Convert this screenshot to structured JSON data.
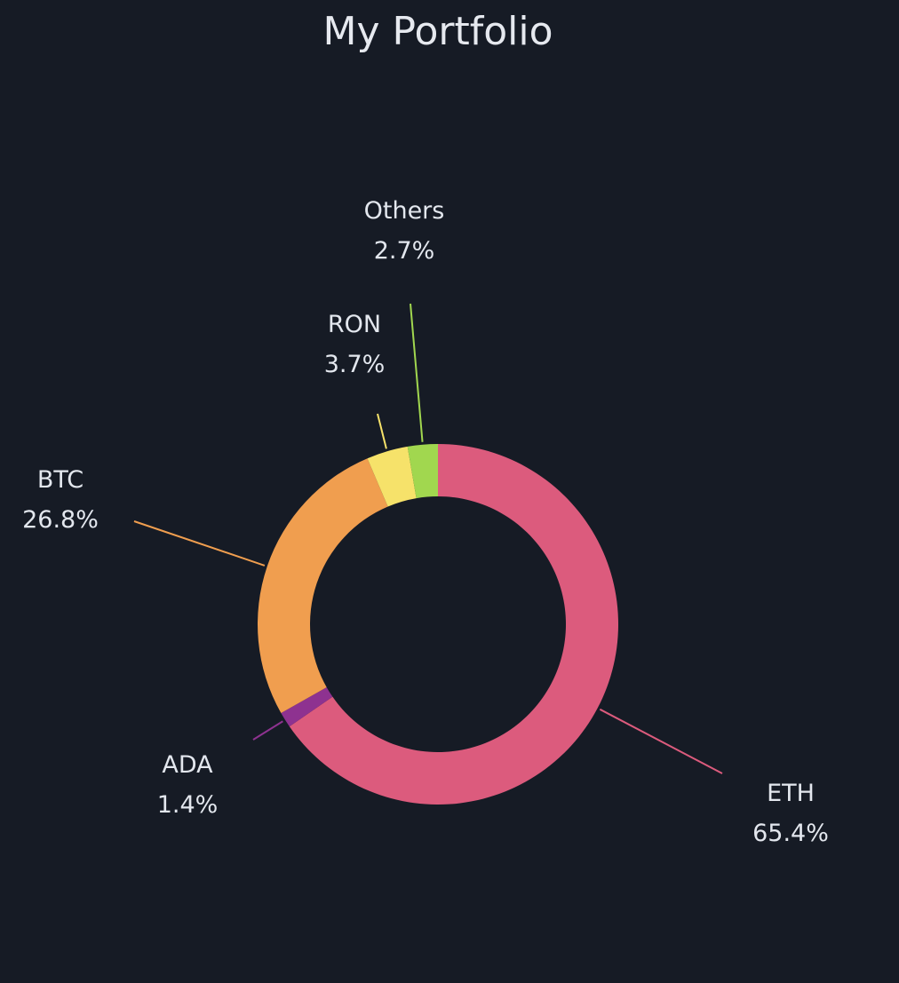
{
  "chart_data": {
    "type": "pie",
    "title": "My Portfolio",
    "start_category": "ETH",
    "direction": "clockwise",
    "categories": [
      "ETH",
      "ADA",
      "BTC",
      "RON",
      "Others"
    ],
    "values": [
      65.4,
      1.4,
      26.8,
      3.7,
      2.7
    ],
    "value_labels": [
      "65.4%",
      "1.4%",
      "26.8%",
      "3.7%",
      "2.7%"
    ],
    "colors": [
      "#dc5b7d",
      "#8e3290",
      "#f09e4f",
      "#f6e26a",
      "#a1d74f"
    ],
    "background": "#161b25"
  }
}
